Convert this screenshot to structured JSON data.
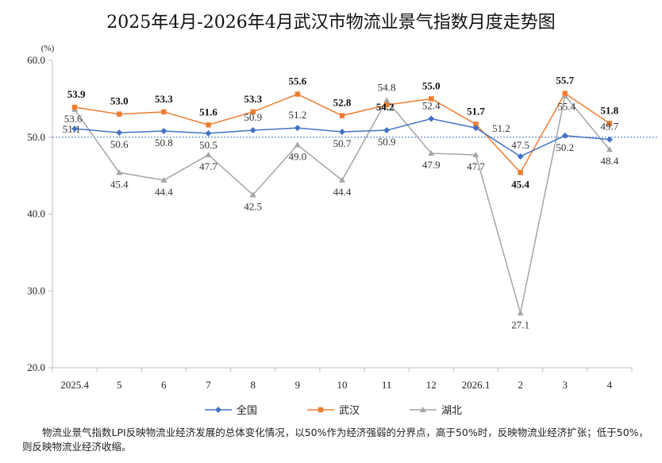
{
  "chart_data": {
    "type": "line",
    "title": "2025年4月-2026年4月武汉市物流业景气指数月度走势图",
    "yunit": "(%)",
    "ylim": [
      20,
      60
    ],
    "yticks": [
      "20.0",
      "30.0",
      "40.0",
      "50.0",
      "60.0"
    ],
    "ytick_values": [
      20,
      30,
      40,
      50,
      60
    ],
    "categories": [
      "2025.4",
      "5",
      "6",
      "7",
      "8",
      "9",
      "10",
      "11",
      "12",
      "2026.1",
      "2",
      "3",
      "4"
    ],
    "reference_line": 50,
    "legend_position": "bottom",
    "series": [
      {
        "name": "全国",
        "color": "#4472C4",
        "marker": "diamond",
        "values": [
          51.1,
          50.6,
          50.8,
          50.5,
          50.9,
          51.2,
          50.7,
          50.9,
          52.4,
          51.2,
          47.5,
          50.2,
          49.7
        ],
        "labels": [
          "51.1",
          "50.6",
          "50.8",
          "50.5",
          "50.9",
          "51.2",
          "50.7",
          "50.9",
          "52.4",
          "51.2",
          "47.5",
          "50.2",
          "49.7"
        ]
      },
      {
        "name": "武汉",
        "color": "#ED7D31",
        "marker": "square",
        "values": [
          53.9,
          53.0,
          53.3,
          51.6,
          53.3,
          55.6,
          52.8,
          54.2,
          55.0,
          51.7,
          45.4,
          55.7,
          51.8
        ],
        "labels": [
          "53.9",
          "53.0",
          "53.3",
          "51.6",
          "53.3",
          "55.6",
          "52.8",
          "54.2",
          "55.0",
          "51.7",
          "45.4",
          "55.7",
          "51.8"
        ]
      },
      {
        "name": "湖北",
        "color": "#A5A5A5",
        "marker": "triangle",
        "values": [
          53.6,
          45.4,
          44.4,
          47.7,
          42.5,
          49.0,
          44.4,
          54.8,
          47.9,
          47.7,
          27.1,
          55.4,
          48.4
        ],
        "labels": [
          "53.6",
          "45.4",
          "44.4",
          "47.7",
          "42.5",
          "49.0",
          "44.4",
          "54.8",
          "47.9",
          "47.7",
          "27.1",
          "55.4",
          "48.4"
        ]
      }
    ]
  },
  "footnote": "物流业景气指数LPI反映物流业经济发展的总体变化情况，以50%作为经济强弱的分界点，高于50%时，反映物流业经济扩张；低于50%，则反映物流业经济收缩。"
}
